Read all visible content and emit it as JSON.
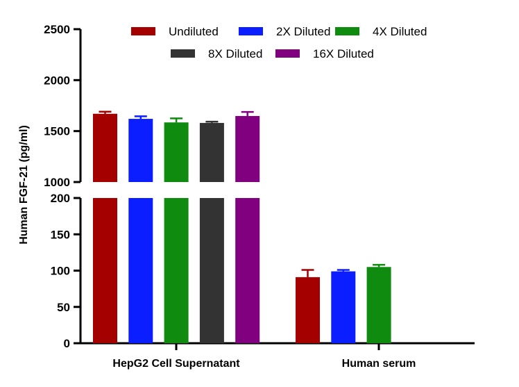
{
  "chart_data": {
    "type": "bar",
    "ylabel": "Human FGF-21 (pg/ml)",
    "categories": [
      "HepG2 Cell Supernatant",
      "Human serum"
    ],
    "series": [
      {
        "name": "Undiluted",
        "color": "#A50000",
        "values": [
          1670,
          91
        ],
        "errors": [
          20,
          10
        ]
      },
      {
        "name": "2X Diluted",
        "color": "#0A1EFF",
        "values": [
          1620,
          99
        ],
        "errors": [
          25,
          2
        ]
      },
      {
        "name": "4X Diluted",
        "color": "#0F8C0F",
        "values": [
          1585,
          105
        ],
        "errors": [
          40,
          3
        ]
      },
      {
        "name": "8X Diluted",
        "color": "#333333",
        "values": [
          1580,
          null
        ],
        "errors": [
          12,
          null
        ]
      },
      {
        "name": "16X Diluted",
        "color": "#800080",
        "values": [
          1648,
          null
        ],
        "errors": [
          40,
          null
        ]
      }
    ],
    "y_axis_segments": [
      {
        "ylim": [
          0,
          200
        ],
        "ticks": [
          "0",
          "50",
          "100",
          "150",
          "200"
        ]
      },
      {
        "ylim": [
          1000,
          2500
        ],
        "ticks": [
          "1000",
          "1500",
          "2000",
          "2500"
        ]
      }
    ],
    "axis_break": true,
    "legend_position": "top",
    "grid": false
  }
}
